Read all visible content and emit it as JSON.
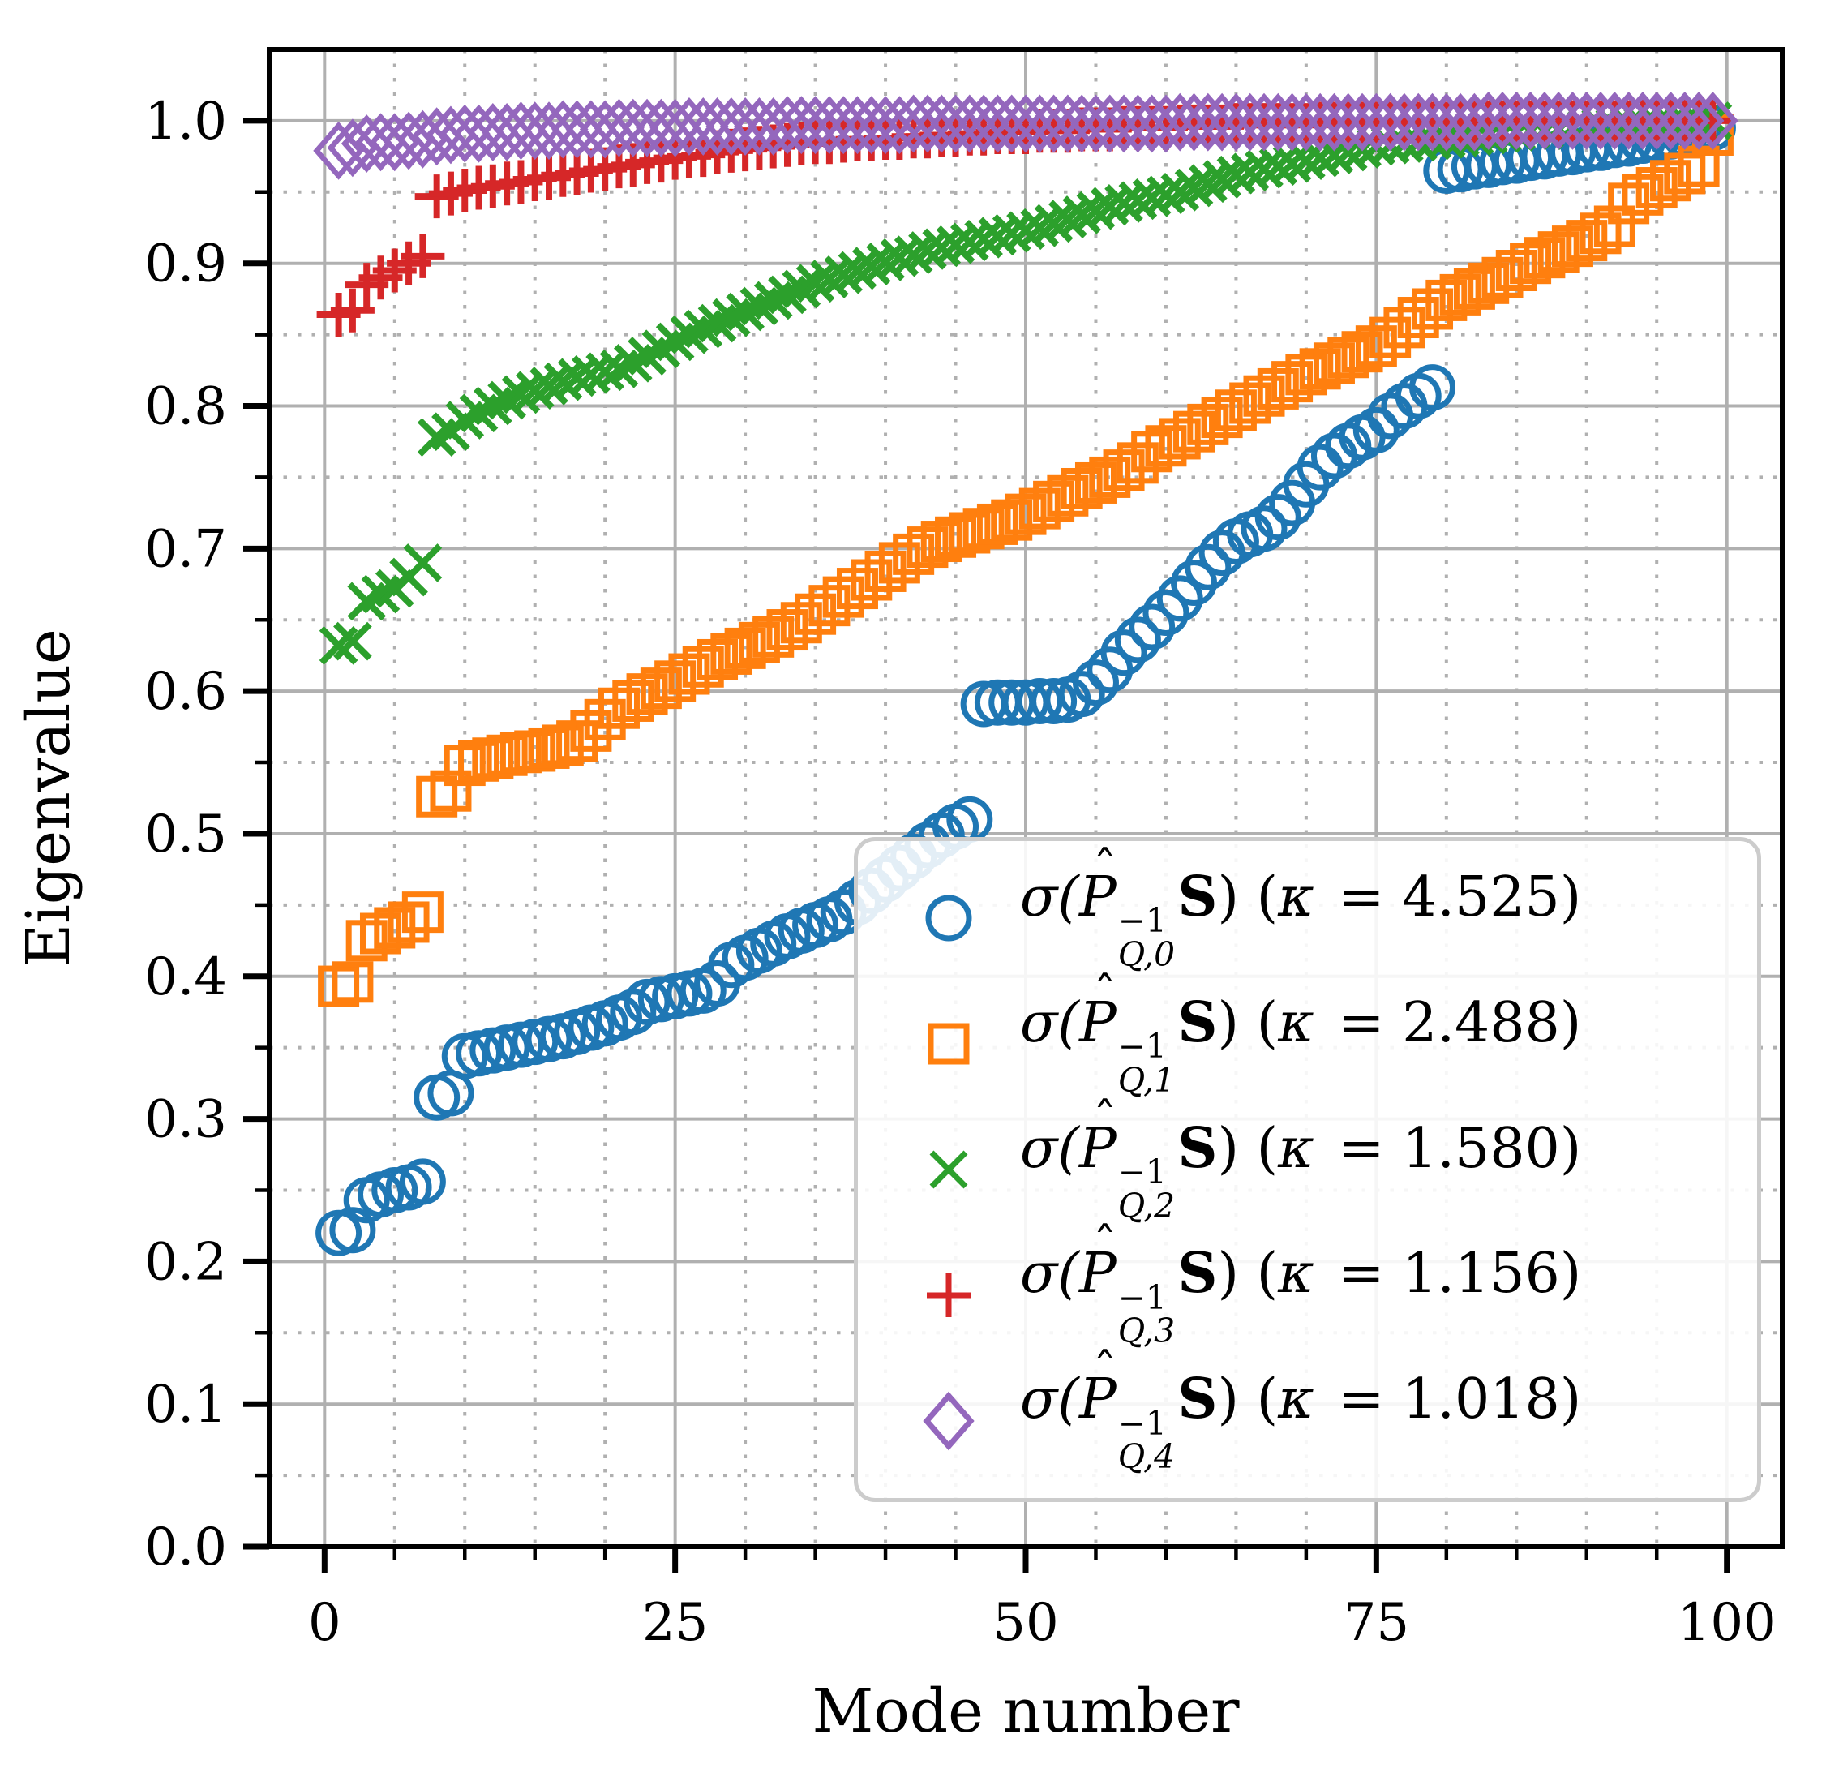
{
  "chart_data": {
    "type": "scatter",
    "title": "",
    "xlabel": "Mode number",
    "ylabel": "Eigenvalue",
    "xlim": [
      -3.95,
      103.95
    ],
    "ylim": [
      0,
      1.05
    ],
    "grid": true,
    "legend_position": "lower right",
    "x_ticks": [
      0,
      25,
      50,
      75,
      100
    ],
    "x_tick_labels": [
      "0",
      "25",
      "50",
      "75",
      "100"
    ],
    "y_ticks": [
      0.0,
      0.1,
      0.2,
      0.3,
      0.4,
      0.5,
      0.6,
      0.7,
      0.8,
      0.9,
      1.0
    ],
    "y_tick_labels": [
      "0.0",
      "0.1",
      "0.2",
      "0.3",
      "0.4",
      "0.5",
      "0.6",
      "0.7",
      "0.8",
      "0.9",
      "1.0"
    ],
    "x_minor_step": 5,
    "y_minor_step": 0.05,
    "x": [
      1,
      2,
      3,
      4,
      5,
      6,
      7,
      8,
      9,
      10,
      11,
      12,
      13,
      14,
      15,
      16,
      17,
      18,
      19,
      20,
      21,
      22,
      23,
      24,
      25,
      26,
      27,
      28,
      29,
      30,
      31,
      32,
      33,
      34,
      35,
      36,
      37,
      38,
      39,
      40,
      41,
      42,
      43,
      44,
      45,
      46,
      47,
      48,
      49,
      50,
      51,
      52,
      53,
      54,
      55,
      56,
      57,
      58,
      59,
      60,
      61,
      62,
      63,
      64,
      65,
      66,
      67,
      68,
      69,
      70,
      71,
      72,
      73,
      74,
      75,
      76,
      77,
      78,
      79,
      80,
      81,
      82,
      83,
      84,
      85,
      86,
      87,
      88,
      89,
      90,
      91,
      92,
      93,
      94,
      95,
      96,
      97,
      98,
      99
    ],
    "series": [
      {
        "name": "sigma(P_{Q,0}^{-1} S)",
        "kappa": 4.525,
        "marker": "circle",
        "color": "#1f77b4",
        "values": [
          0.22,
          0.222,
          0.243,
          0.247,
          0.25,
          0.252,
          0.256,
          0.315,
          0.318,
          0.344,
          0.346,
          0.348,
          0.35,
          0.352,
          0.354,
          0.356,
          0.358,
          0.361,
          0.364,
          0.367,
          0.371,
          0.375,
          0.382,
          0.384,
          0.386,
          0.388,
          0.39,
          0.395,
          0.408,
          0.413,
          0.418,
          0.423,
          0.428,
          0.432,
          0.436,
          0.44,
          0.445,
          0.452,
          0.46,
          0.468,
          0.476,
          0.484,
          0.492,
          0.499,
          0.505,
          0.51,
          0.591,
          0.592,
          0.592,
          0.592,
          0.593,
          0.593,
          0.594,
          0.598,
          0.606,
          0.615,
          0.627,
          0.636,
          0.645,
          0.655,
          0.665,
          0.676,
          0.687,
          0.697,
          0.705,
          0.71,
          0.714,
          0.722,
          0.732,
          0.745,
          0.757,
          0.765,
          0.772,
          0.778,
          0.783,
          0.793,
          0.8,
          0.807,
          0.813,
          0.965,
          0.966,
          0.968,
          0.969,
          0.971,
          0.972,
          0.974,
          0.975,
          0.977,
          0.978,
          0.98,
          0.981,
          0.983,
          0.984,
          0.986,
          0.987,
          0.989,
          0.99,
          0.992,
          0.995
        ]
      },
      {
        "name": "sigma(P_{Q,1}^{-1} S)",
        "kappa": 2.488,
        "marker": "square",
        "color": "#ff7f0e",
        "values": [
          0.393,
          0.396,
          0.425,
          0.43,
          0.434,
          0.438,
          0.445,
          0.526,
          0.53,
          0.548,
          0.551,
          0.553,
          0.555,
          0.557,
          0.558,
          0.56,
          0.562,
          0.565,
          0.572,
          0.58,
          0.588,
          0.593,
          0.598,
          0.602,
          0.607,
          0.612,
          0.617,
          0.622,
          0.626,
          0.63,
          0.634,
          0.638,
          0.643,
          0.648,
          0.654,
          0.66,
          0.666,
          0.672,
          0.678,
          0.684,
          0.69,
          0.696,
          0.701,
          0.705,
          0.708,
          0.711,
          0.714,
          0.717,
          0.72,
          0.724,
          0.728,
          0.733,
          0.737,
          0.742,
          0.746,
          0.75,
          0.755,
          0.76,
          0.768,
          0.772,
          0.777,
          0.782,
          0.787,
          0.792,
          0.797,
          0.802,
          0.807,
          0.812,
          0.817,
          0.822,
          0.826,
          0.83,
          0.834,
          0.838,
          0.842,
          0.848,
          0.855,
          0.862,
          0.868,
          0.874,
          0.878,
          0.882,
          0.886,
          0.89,
          0.895,
          0.9,
          0.904,
          0.908,
          0.912,
          0.916,
          0.921,
          0.926,
          0.942,
          0.948,
          0.953,
          0.958,
          0.963,
          0.968,
          0.99
        ]
      },
      {
        "name": "sigma(P_{Q,2}^{-1} S)",
        "kappa": 1.58,
        "marker": "x",
        "color": "#2ca02c",
        "values": [
          0.632,
          0.635,
          0.663,
          0.668,
          0.672,
          0.68,
          0.69,
          0.778,
          0.782,
          0.79,
          0.795,
          0.8,
          0.804,
          0.808,
          0.811,
          0.814,
          0.817,
          0.82,
          0.822,
          0.824,
          0.826,
          0.83,
          0.835,
          0.84,
          0.845,
          0.85,
          0.854,
          0.858,
          0.862,
          0.866,
          0.87,
          0.874,
          0.878,
          0.882,
          0.886,
          0.889,
          0.892,
          0.895,
          0.898,
          0.901,
          0.904,
          0.906,
          0.909,
          0.911,
          0.913,
          0.915,
          0.917,
          0.919,
          0.921,
          0.923,
          0.925,
          0.928,
          0.931,
          0.934,
          0.937,
          0.94,
          0.942,
          0.944,
          0.946,
          0.948,
          0.95,
          0.953,
          0.956,
          0.959,
          0.962,
          0.964,
          0.966,
          0.968,
          0.97,
          0.972,
          0.974,
          0.976,
          0.978,
          0.98,
          0.982,
          0.983,
          0.984,
          0.985,
          0.986,
          0.987,
          0.988,
          0.989,
          0.99,
          0.991,
          0.992,
          0.993,
          0.993,
          0.994,
          0.995,
          0.995,
          0.996,
          0.996,
          0.997,
          0.997,
          0.998,
          0.998,
          0.999,
          0.999,
          1.0
        ]
      },
      {
        "name": "sigma(P_{Q,3}^{-1} S)",
        "kappa": 1.156,
        "marker": "plus",
        "color": "#d62728",
        "values": [
          0.864,
          0.867,
          0.885,
          0.89,
          0.895,
          0.9,
          0.905,
          0.947,
          0.949,
          0.951,
          0.953,
          0.954,
          0.956,
          0.957,
          0.959,
          0.96,
          0.962,
          0.963,
          0.965,
          0.966,
          0.968,
          0.969,
          0.971,
          0.972,
          0.974,
          0.975,
          0.976,
          0.978,
          0.979,
          0.98,
          0.981,
          0.982,
          0.983,
          0.984,
          0.985,
          0.985,
          0.986,
          0.987,
          0.987,
          0.988,
          0.988,
          0.989,
          0.989,
          0.99,
          0.99,
          0.991,
          0.991,
          0.992,
          0.992,
          0.992,
          0.993,
          0.993,
          0.993,
          0.994,
          0.994,
          0.994,
          0.995,
          0.995,
          0.995,
          0.995,
          0.996,
          0.996,
          0.996,
          0.996,
          0.997,
          0.997,
          0.997,
          0.997,
          0.997,
          0.997,
          0.998,
          0.998,
          0.998,
          0.998,
          0.998,
          0.998,
          0.998,
          0.998,
          0.998,
          0.998,
          0.999,
          0.999,
          0.999,
          0.999,
          0.999,
          0.999,
          0.999,
          0.999,
          0.999,
          0.999,
          0.999,
          0.999,
          0.999,
          1.0,
          1.0,
          1.0,
          1.0,
          1.0,
          1.0
        ]
      },
      {
        "name": "sigma(P_{Q,4}^{-1} S)",
        "kappa": 1.018,
        "marker": "diamond",
        "color": "#9467bd",
        "values": [
          0.979,
          0.981,
          0.984,
          0.985,
          0.985,
          0.986,
          0.987,
          0.989,
          0.99,
          0.991,
          0.991,
          0.992,
          0.992,
          0.993,
          0.993,
          0.993,
          0.994,
          0.994,
          0.994,
          0.994,
          0.995,
          0.995,
          0.995,
          0.995,
          0.995,
          0.996,
          0.996,
          0.996,
          0.996,
          0.996,
          0.996,
          0.996,
          0.997,
          0.997,
          0.997,
          0.997,
          0.997,
          0.997,
          0.997,
          0.997,
          0.997,
          0.998,
          0.998,
          0.998,
          0.998,
          0.998,
          0.998,
          0.998,
          0.998,
          0.998,
          0.998,
          0.998,
          0.998,
          0.998,
          0.998,
          0.998,
          0.998,
          0.998,
          0.998,
          0.998,
          0.999,
          0.999,
          0.999,
          0.999,
          0.999,
          0.999,
          0.999,
          0.999,
          0.999,
          0.999,
          0.999,
          0.999,
          0.999,
          0.999,
          0.999,
          0.999,
          0.999,
          0.999,
          0.999,
          0.999,
          0.999,
          0.999,
          1.0,
          1.0,
          1.0,
          1.0,
          1.0,
          1.0,
          1.0,
          1.0,
          1.0,
          1.0,
          1.0,
          1.0,
          1.0,
          1.0,
          1.0,
          1.0,
          1.0
        ]
      }
    ]
  },
  "legend": {
    "sigma_open": "σ(",
    "p_letter": "P",
    "hat": "ˆ",
    "sup": "−1",
    "bold_s": "S",
    "close_open": ") (",
    "kappa_sym": "κ",
    "close": ")",
    "items": [
      {
        "sub": "Q,0",
        "eq": " = 4.525"
      },
      {
        "sub": "Q,1",
        "eq": " = 2.488"
      },
      {
        "sub": "Q,2",
        "eq": " = 1.580"
      },
      {
        "sub": "Q,3",
        "eq": " = 1.156"
      },
      {
        "sub": "Q,4",
        "eq": " = 1.018"
      }
    ]
  }
}
